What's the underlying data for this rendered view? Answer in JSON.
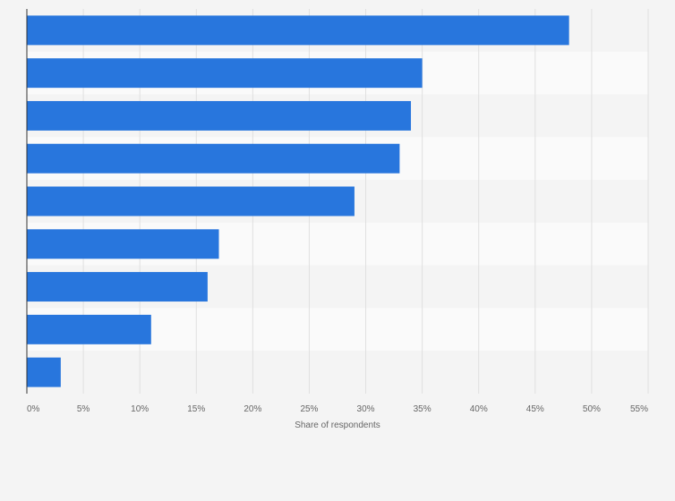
{
  "chart_data": {
    "type": "bar",
    "orientation": "horizontal",
    "categories": [
      "",
      "",
      "",
      "",
      "",
      "",
      "",
      "",
      ""
    ],
    "values": [
      48,
      35,
      34,
      33,
      29,
      17,
      16,
      11,
      3
    ],
    "xlabel": "Share of respondents",
    "ylabel": "",
    "xlim": [
      0,
      55
    ],
    "x_ticks": [
      "0%",
      "5%",
      "10%",
      "15%",
      "20%",
      "25%",
      "30%",
      "35%",
      "40%",
      "45%",
      "50%",
      "55%"
    ],
    "grid": true,
    "colors": {
      "bar": "#2876dd",
      "band_light": "#fafafa",
      "band_dark": "#f4f4f4",
      "grid": "#e0e0e0",
      "axis": "#333333"
    }
  }
}
